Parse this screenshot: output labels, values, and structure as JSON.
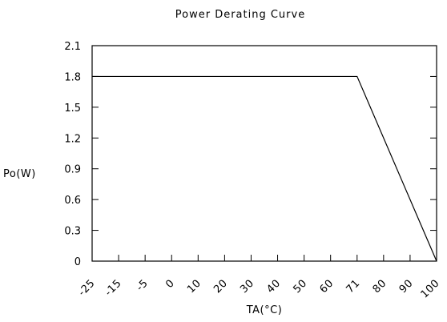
{
  "chart_data": {
    "type": "line",
    "title": "Power Derating Curve",
    "xlabel": "TA(°C)",
    "ylabel": "Po(W)",
    "categories": [
      "-25",
      "-15",
      "-5",
      "0",
      "10",
      "20",
      "30",
      "40",
      "50",
      "60",
      "71",
      "80",
      "90",
      "100"
    ],
    "yticks": [
      "0",
      "0.3",
      "0.6",
      "0.9",
      "1.2",
      "1.5",
      "1.8",
      "2.1"
    ],
    "ylim": [
      0,
      2.1
    ],
    "series": [
      {
        "points": [
          {
            "x": "-25",
            "y": 1.8
          },
          {
            "x": "71",
            "y": 1.8
          },
          {
            "x": "100",
            "y": 0
          }
        ]
      }
    ],
    "grid": false,
    "legend": "none",
    "colors": {
      "line": "#000000",
      "axis": "#000000",
      "background": "#ffffff"
    }
  }
}
